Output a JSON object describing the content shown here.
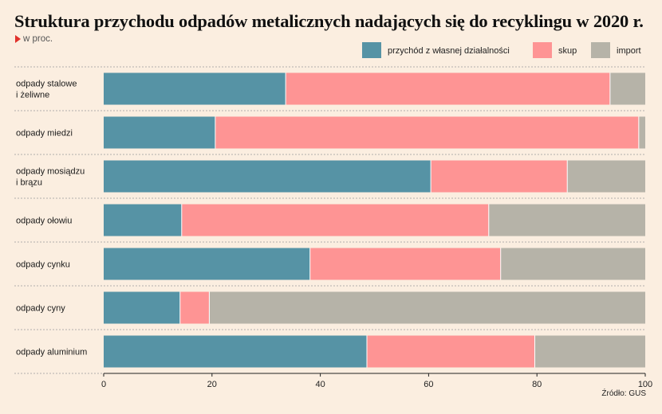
{
  "chart_data": {
    "type": "bar",
    "orientation": "horizontal",
    "stacked": true,
    "title": "Struktura przychodu odpadów metalicznych nadających się do recyklingu w 2020 r.",
    "subtitle": "w proc.",
    "source": "Źródło: GUS",
    "xlim": [
      0,
      100
    ],
    "x_ticks": [
      0,
      20,
      40,
      60,
      80,
      100
    ],
    "legend_position": "top-right",
    "grid": false,
    "categories": [
      [
        "odpady stalowe",
        "i żeliwne"
      ],
      [
        "odpady miedzi"
      ],
      [
        "odpady mosiądzu",
        "i brązu"
      ],
      [
        "odpady ołowiu"
      ],
      [
        "odpady cynku"
      ],
      [
        "odpady cyny"
      ],
      [
        "odpady aluminium"
      ]
    ],
    "series": [
      {
        "name": "przychód z własnej działalności",
        "color": "#5693a5",
        "values": [
          33.6,
          20.6,
          60.4,
          14.4,
          38.1,
          14.1,
          48.6
        ]
      },
      {
        "name": "skup",
        "color": "#fe9494",
        "values": [
          59.9,
          78.2,
          25.2,
          56.7,
          35.2,
          5.4,
          31.0
        ]
      },
      {
        "name": "import",
        "color": "#b6b3a8",
        "values": [
          6.5,
          1.2,
          14.4,
          28.9,
          26.7,
          80.5,
          20.4
        ]
      }
    ]
  }
}
